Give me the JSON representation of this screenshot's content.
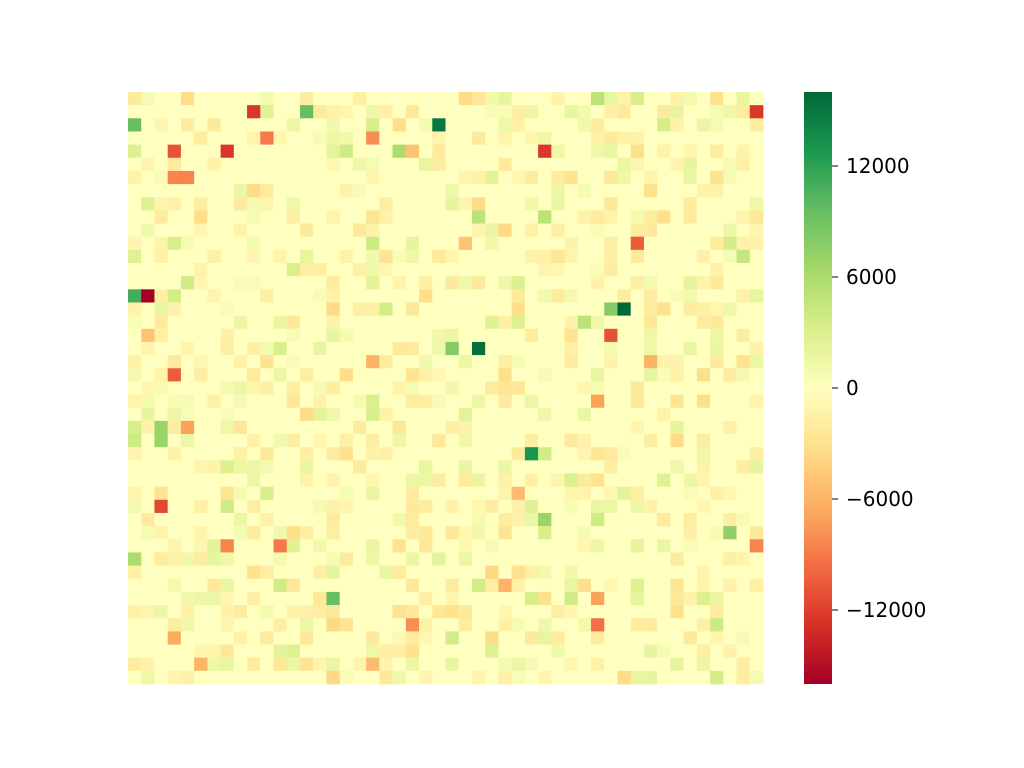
{
  "chart_data": {
    "type": "heatmap",
    "title": "",
    "xlabel": "",
    "ylabel": "",
    "n_rows": 45,
    "n_cols": 48,
    "colormap": "RdYlGn",
    "vmin": -16000,
    "vmax": 16000,
    "colorbar": {
      "ticks": [
        12000,
        6000,
        0,
        -6000,
        -12000
      ],
      "tick_labels": [
        "12000",
        "6000",
        "0",
        "−6000",
        "−12000"
      ],
      "colors": [
        "#a50026",
        "#d73027",
        "#f46d43",
        "#fdae61",
        "#fee08b",
        "#ffffbf",
        "#d9ef8b",
        "#a6d96a",
        "#66bd63",
        "#1a9850",
        "#006837"
      ]
    },
    "background_value": 0,
    "notable_cells": [
      {
        "row": 1,
        "col": 9,
        "value": -12500
      },
      {
        "row": 1,
        "col": 13,
        "value": 9500
      },
      {
        "row": 1,
        "col": 47,
        "value": -12500
      },
      {
        "row": 0,
        "col": 35,
        "value": 5000
      },
      {
        "row": 2,
        "col": 0,
        "value": 9500
      },
      {
        "row": 2,
        "col": 23,
        "value": 15000
      },
      {
        "row": 3,
        "col": 10,
        "value": -9000
      },
      {
        "row": 3,
        "col": 18,
        "value": -8000
      },
      {
        "row": 4,
        "col": 3,
        "value": -11000
      },
      {
        "row": 4,
        "col": 7,
        "value": -12500
      },
      {
        "row": 4,
        "col": 20,
        "value": 6000
      },
      {
        "row": 4,
        "col": 21,
        "value": -5000
      },
      {
        "row": 4,
        "col": 31,
        "value": -12500
      },
      {
        "row": 6,
        "col": 3,
        "value": -8500
      },
      {
        "row": 6,
        "col": 4,
        "value": -8500
      },
      {
        "row": 9,
        "col": 26,
        "value": 5000
      },
      {
        "row": 9,
        "col": 31,
        "value": 5000
      },
      {
        "row": 11,
        "col": 38,
        "value": -10500
      },
      {
        "row": 11,
        "col": 25,
        "value": -5000
      },
      {
        "row": 12,
        "col": 46,
        "value": 4500
      },
      {
        "row": 15,
        "col": 0,
        "value": 11000
      },
      {
        "row": 15,
        "col": 1,
        "value": -16000
      },
      {
        "row": 16,
        "col": 36,
        "value": 8000
      },
      {
        "row": 16,
        "col": 37,
        "value": 16000
      },
      {
        "row": 17,
        "col": 34,
        "value": 5000
      },
      {
        "row": 18,
        "col": 36,
        "value": -11000
      },
      {
        "row": 18,
        "col": 1,
        "value": -5000
      },
      {
        "row": 19,
        "col": 24,
        "value": 8000
      },
      {
        "row": 19,
        "col": 26,
        "value": 15500
      },
      {
        "row": 20,
        "col": 18,
        "value": -6000
      },
      {
        "row": 20,
        "col": 39,
        "value": -6000
      },
      {
        "row": 21,
        "col": 3,
        "value": -10500
      },
      {
        "row": 23,
        "col": 35,
        "value": -7000
      },
      {
        "row": 25,
        "col": 2,
        "value": 7000
      },
      {
        "row": 25,
        "col": 4,
        "value": -7000
      },
      {
        "row": 26,
        "col": 2,
        "value": 7000
      },
      {
        "row": 27,
        "col": 30,
        "value": 13000
      },
      {
        "row": 30,
        "col": 29,
        "value": -5500
      },
      {
        "row": 31,
        "col": 2,
        "value": -11500
      },
      {
        "row": 32,
        "col": 31,
        "value": 7000
      },
      {
        "row": 33,
        "col": 45,
        "value": 7500
      },
      {
        "row": 34,
        "col": 7,
        "value": -8500
      },
      {
        "row": 34,
        "col": 11,
        "value": -9000
      },
      {
        "row": 34,
        "col": 47,
        "value": -8500
      },
      {
        "row": 35,
        "col": 0,
        "value": 6000
      },
      {
        "row": 37,
        "col": 28,
        "value": -6000
      },
      {
        "row": 38,
        "col": 15,
        "value": 9500
      },
      {
        "row": 38,
        "col": 35,
        "value": -7000
      },
      {
        "row": 40,
        "col": 21,
        "value": -8000
      },
      {
        "row": 40,
        "col": 35,
        "value": -9500
      },
      {
        "row": 41,
        "col": 3,
        "value": -6500
      },
      {
        "row": 43,
        "col": 5,
        "value": -6000
      },
      {
        "row": 43,
        "col": 18,
        "value": -5500
      }
    ]
  }
}
